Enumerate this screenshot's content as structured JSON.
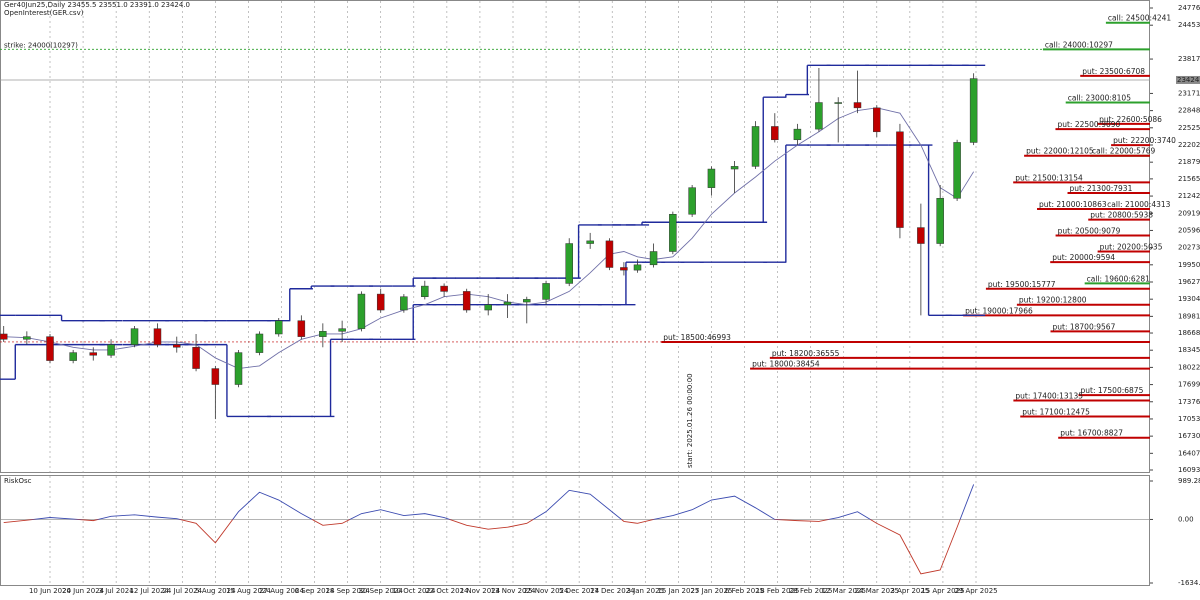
{
  "chart_data": {
    "type": "candlestick",
    "header": "Ger40Jun25,Daily  23455.5 23551.0 23391.0 23424.0",
    "indicator_label": "OpenInterest(GER.csv)",
    "x": [
      "2024-05-27",
      "2024-06-03",
      "2024-06-10",
      "2024-06-17",
      "2024-06-24",
      "2024-07-01",
      "2024-07-08",
      "2024-07-15",
      "2024-07-22",
      "2024-07-29",
      "2024-08-05",
      "2024-08-12",
      "2024-08-19",
      "2024-08-26",
      "2024-09-02",
      "2024-09-09",
      "2024-09-16",
      "2024-09-23",
      "2024-09-30",
      "2024-10-07",
      "2024-10-14",
      "2024-10-21",
      "2024-10-28",
      "2024-11-04",
      "2024-11-11",
      "2024-11-18",
      "2024-11-25",
      "2024-12-02",
      "2024-12-09",
      "2024-12-16",
      "2024-12-23",
      "2024-12-30",
      "2025-01-06",
      "2025-01-13",
      "2025-01-20",
      "2025-01-27",
      "2025-02-03",
      "2025-02-10",
      "2025-02-17",
      "2025-02-24",
      "2025-03-03",
      "2025-03-10",
      "2025-03-17",
      "2025-03-24",
      "2025-03-31",
      "2025-04-07",
      "2025-04-14",
      "2025-04-21",
      "2025-04-28"
    ],
    "open": [
      18650,
      18550,
      18600,
      18150,
      18300,
      18250,
      18450,
      18750,
      18450,
      18400,
      18000,
      17700,
      18300,
      18650,
      18900,
      18600,
      18700,
      18750,
      19400,
      19100,
      19350,
      19550,
      19450,
      19100,
      19200,
      19250,
      19300,
      19600,
      20350,
      20400,
      19900,
      19850,
      19950,
      20200,
      20900,
      21400,
      21750,
      21800,
      22550,
      22300,
      22500,
      23000,
      23000,
      22900,
      22450,
      20650,
      20350,
      21200,
      22250
    ],
    "high": [
      18800,
      18700,
      18650,
      18350,
      18400,
      18550,
      18800,
      18850,
      18600,
      18650,
      18050,
      18350,
      18700,
      18950,
      19000,
      18850,
      18900,
      19450,
      19500,
      19400,
      19650,
      19600,
      19500,
      19400,
      19400,
      19350,
      19650,
      20450,
      20550,
      20450,
      20000,
      20050,
      20350,
      20950,
      21450,
      21800,
      21900,
      22650,
      22800,
      22600,
      23650,
      23100,
      23600,
      22950,
      22600,
      21100,
      21450,
      22300,
      23550
    ],
    "low": [
      18500,
      18450,
      18100,
      18100,
      18150,
      18200,
      18400,
      18400,
      18300,
      17950,
      17050,
      17650,
      18250,
      18600,
      18550,
      18400,
      18500,
      18700,
      19050,
      19050,
      19300,
      19350,
      19050,
      19000,
      18950,
      18850,
      19200,
      19550,
      20250,
      19850,
      19750,
      19800,
      19900,
      20150,
      20850,
      21250,
      21300,
      21750,
      22250,
      22200,
      22450,
      22250,
      22800,
      22350,
      20450,
      19000,
      20300,
      21150,
      22200
    ],
    "close": [
      18550,
      18600,
      18150,
      18300,
      18250,
      18450,
      18750,
      18450,
      18400,
      18000,
      17700,
      18300,
      18650,
      18900,
      18600,
      18700,
      18750,
      19400,
      19100,
      19350,
      19550,
      19450,
      19100,
      19200,
      19250,
      19300,
      19600,
      20350,
      20400,
      19900,
      19850,
      19950,
      20200,
      20900,
      21400,
      21750,
      21800,
      22550,
      22300,
      22500,
      23000,
      23000,
      22900,
      22450,
      20650,
      20350,
      21200,
      22250,
      23450
    ],
    "up_color": "#2ca02c",
    "down_color": "#c00000",
    "channel_upper": [
      19000,
      19000,
      19000,
      18900,
      18900,
      18900,
      18900,
      18900,
      18900,
      18900,
      18900,
      18900,
      18900,
      18900,
      19500,
      19550,
      19550,
      19550,
      19550,
      19550,
      19700,
      19700,
      19700,
      19700,
      19700,
      19700,
      19700,
      19700,
      20700,
      20700,
      20700,
      20700,
      20750,
      20750,
      20750,
      20750,
      20750,
      20750,
      23100,
      23150,
      23700,
      23700,
      23700,
      23700,
      23700,
      23700,
      23700,
      23700,
      23700
    ],
    "channel_lower": [
      17800,
      18450,
      18450,
      18450,
      18450,
      18450,
      18450,
      18450,
      18450,
      18450,
      18450,
      17100,
      17100,
      17100,
      17100,
      17100,
      18550,
      18550,
      18550,
      18550,
      19200,
      19200,
      19200,
      19200,
      19200,
      19200,
      19200,
      19200,
      19200,
      19200,
      19200,
      20000,
      20000,
      20000,
      20000,
      20000,
      20000,
      20000,
      20000,
      22200,
      22200,
      22200,
      22200,
      22200,
      22200,
      22200,
      19000,
      19000,
      19000
    ],
    "channel_color": "#1f2a9c",
    "ma": [
      18600,
      18580,
      18500,
      18400,
      18350,
      18350,
      18420,
      18500,
      18500,
      18450,
      18200,
      18000,
      18050,
      18300,
      18550,
      18650,
      18650,
      18750,
      18950,
      19100,
      19200,
      19350,
      19400,
      19350,
      19250,
      19200,
      19250,
      19450,
      19800,
      20150,
      20200,
      20100,
      20050,
      20100,
      20450,
      20900,
      21300,
      21600,
      21900,
      22200,
      22450,
      22700,
      22850,
      22900,
      22800,
      22200,
      21400,
      21200,
      21700
    ],
    "ma_color": "#7070a8",
    "ylim": [
      16056,
      24927
    ],
    "yticks": [
      24776.5,
      24453.5,
      {
        "value": 23817,
        "label": "23817.0"
      },
      {
        "value": 23171,
        "label": "23171.0"
      },
      {
        "value": 22848,
        "label": "22848.0"
      },
      {
        "value": 22525,
        "label": "22525.0"
      },
      {
        "value": 22202,
        "label": "22202.0"
      },
      {
        "value": 21879,
        "label": "21879.0"
      },
      {
        "value": 21565,
        "label": "21565.0"
      },
      {
        "value": 21242,
        "label": "21242.0"
      },
      {
        "value": 20919,
        "label": "20919.0"
      },
      {
        "value": 20596,
        "label": "20596.0"
      },
      {
        "value": 20273,
        "label": "20273.0"
      },
      {
        "value": 19950,
        "label": "19950.0"
      },
      {
        "value": 19627,
        "label": "19627.0"
      },
      {
        "value": 19304,
        "label": "19304.0"
      },
      {
        "value": 18981,
        "label": "18981.0"
      },
      {
        "value": 18668,
        "label": "18668.0"
      },
      {
        "value": 18345,
        "label": "18345.0"
      },
      {
        "value": 18022,
        "label": "18022.0"
      },
      {
        "value": 17699,
        "label": "17699.0"
      },
      {
        "value": 17376,
        "label": "17376.0"
      },
      {
        "value": 17053,
        "label": "17053.0"
      },
      {
        "value": 16730,
        "label": "16730.0"
      },
      {
        "value": 16407,
        "label": "16407.0"
      },
      16093.5
    ],
    "xticks": [
      "10 Jun 2024",
      "20 Jun 2024",
      "3 Jul 2024",
      "12 Jul 2024",
      "24 Jul 2024",
      "5 Aug 2024",
      "15 Aug 2024",
      "27 Aug 2024",
      "6 Sep 2024",
      "18 Sep 2024",
      "30 Sep 2024",
      "10 Oct 2024",
      "22 Oct 2024",
      "1 Nov 2024",
      "13 Nov 2024",
      "25 Nov 2024",
      "5 Dec 2024",
      "17 Dec 2024",
      "3 Jan 2025",
      "15 Jan 2025",
      "27 Jan 2025",
      "6 Feb 2025",
      "18 Feb 2025",
      "28 Feb 2025",
      "12 Mar 2025",
      "24 Mar 2025",
      "3 Apr 2025",
      "15 Apr 2025",
      "29 Apr 2025"
    ],
    "strike": {
      "label": "strike: 24000(10297)",
      "value": 24000,
      "color": "#2ca02c"
    },
    "current_price": {
      "value": 23424,
      "label": "23424.0"
    },
    "annotation": "start: 2025.01.26 00:00:00",
    "levels": [
      {
        "label": "call: 24500:4241",
        "strike": 24500,
        "open_interest": 4241,
        "color": "#2ca02c"
      },
      {
        "label": "call: 24000:10297",
        "strike": 24000,
        "open_interest": 10297,
        "color": "#2ca02c"
      },
      {
        "label": "put: 23500:6708",
        "strike": 23500,
        "open_interest": 6708,
        "color": "#c00000"
      },
      {
        "label": "call: 23000:8105",
        "strike": 23000,
        "open_interest": 8105,
        "color": "#2ca02c"
      },
      {
        "label": "put: 22600:5086",
        "strike": 22600,
        "open_interest": 5086,
        "color": "#c00000"
      },
      {
        "label": "put: 22500:9090",
        "strike": 22500,
        "open_interest": 9090,
        "color": "#c00000"
      },
      {
        "label": "put: 22200:3740",
        "strike": 22200,
        "open_interest": 3740,
        "color": "#c00000"
      },
      {
        "label": "call: 22000:5769",
        "strike": 22000,
        "open_interest": 5769,
        "color": "#2ca02c"
      },
      {
        "label": "put: 22000:12105",
        "strike": 22000,
        "open_interest": 12105,
        "color": "#c00000"
      },
      {
        "label": "put: 21500:13154",
        "strike": 21500,
        "open_interest": 13154,
        "color": "#c00000"
      },
      {
        "label": "put: 21300:7931",
        "strike": 21300,
        "open_interest": 7931,
        "color": "#c00000"
      },
      {
        "label": "call: 21000:4313",
        "strike": 21000,
        "open_interest": 4313,
        "color": "#2ca02c"
      },
      {
        "label": "put: 21000:10863",
        "strike": 21000,
        "open_interest": 10863,
        "color": "#c00000"
      },
      {
        "label": "put: 20800:5938",
        "strike": 20800,
        "open_interest": 5938,
        "color": "#c00000"
      },
      {
        "label": "put: 20500:9079",
        "strike": 20500,
        "open_interest": 9079,
        "color": "#c00000"
      },
      {
        "label": "put: 20200:5035",
        "strike": 20200,
        "open_interest": 5035,
        "color": "#c00000"
      },
      {
        "label": "put: 20000:9594",
        "strike": 20000,
        "open_interest": 9594,
        "color": "#c00000"
      },
      {
        "label": "call: 19600:6281",
        "strike": 19600,
        "open_interest": 6281,
        "color": "#2ca02c"
      },
      {
        "label": "put: 19500:15777",
        "strike": 19500,
        "open_interest": 15777,
        "color": "#c00000"
      },
      {
        "label": "put: 19200:12800",
        "strike": 19200,
        "open_interest": 12800,
        "color": "#c00000"
      },
      {
        "label": "put: 19000:17966",
        "strike": 19000,
        "open_interest": 17966,
        "color": "#c00000"
      },
      {
        "label": "put: 18700:9567",
        "strike": 18700,
        "open_interest": 9567,
        "color": "#c00000"
      },
      {
        "label": "put: 18500:46993",
        "strike": 18500,
        "open_interest": 46993,
        "color": "#c00000"
      },
      {
        "label": "put: 18200:36555",
        "strike": 18200,
        "open_interest": 36555,
        "color": "#c00000"
      },
      {
        "label": "put: 18000:38454",
        "strike": 18000,
        "open_interest": 38454,
        "color": "#c00000"
      },
      {
        "label": "put: 17500:6875",
        "strike": 17500,
        "open_interest": 6875,
        "color": "#c00000"
      },
      {
        "label": "put: 17400:13135",
        "strike": 17400,
        "open_interest": 13135,
        "color": "#c00000"
      },
      {
        "label": "put: 17100:12475",
        "strike": 17100,
        "open_interest": 12475,
        "color": "#c00000"
      },
      {
        "label": "put: 16700:8827",
        "strike": 16700,
        "open_interest": 8827,
        "color": "#c00000"
      }
    ],
    "oscillator": {
      "name": "RiskOsc",
      "values": [
        -80,
        -20,
        50,
        10,
        -30,
        80,
        120,
        60,
        20,
        -100,
        -600,
        200,
        700,
        500,
        150,
        -150,
        -100,
        150,
        250,
        100,
        150,
        50,
        -150,
        -250,
        -200,
        -100,
        200,
        750,
        650,
        250,
        -50,
        -100,
        0,
        100,
        250,
        500,
        600,
        300,
        0,
        -30,
        -50,
        50,
        200,
        -100,
        -400,
        -1400,
        -1300,
        -200,
        900
      ],
      "ylim": [
        -1686.2,
        1066.5
      ],
      "yticks": [
        989.2895,
        {
          "value": 0,
          "label": "0.00"
        },
        {
          "value": -1634.74,
          "label": "-1634.740"
        }
      ],
      "up_color": "#3b4bb0",
      "down_color": "#c0392b"
    }
  }
}
